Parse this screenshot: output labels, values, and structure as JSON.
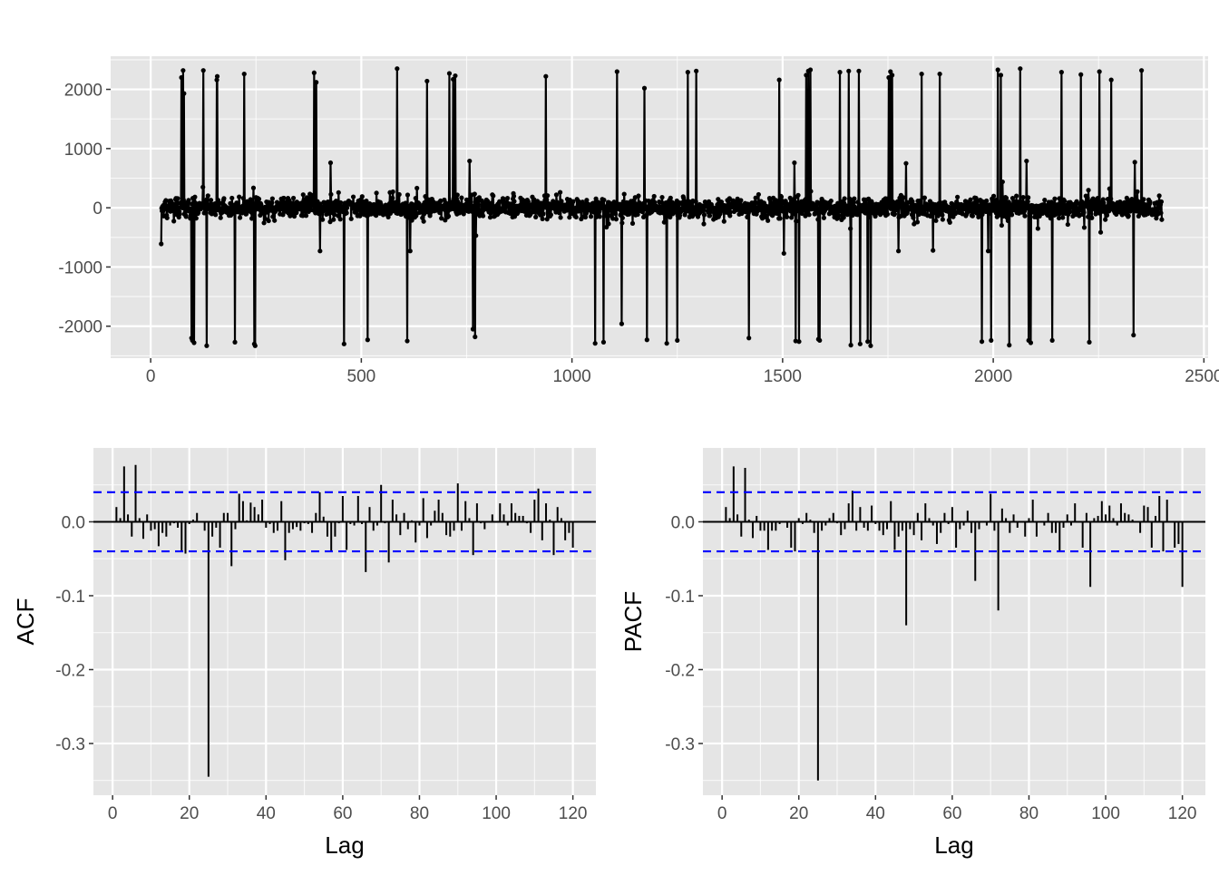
{
  "colors": {
    "panel_background": "#e5e5e5",
    "grid_major": "#ffffff",
    "series": "#000000",
    "confidence_band": "#0000ff",
    "tick_text": "#4d4d4d"
  },
  "chart_data": [
    {
      "type": "line",
      "title": "",
      "xlabel": "",
      "ylabel": "",
      "xlim": [
        -95,
        2510
      ],
      "ylim": [
        -2540,
        2560
      ],
      "x_ticks": [
        0,
        500,
        1000,
        1500,
        2000,
        2500
      ],
      "x_tick_labels": [
        "0",
        "500",
        "1000",
        "1500",
        "2000",
        "2500"
      ],
      "y_ticks": [
        -2000,
        -1000,
        0,
        1000,
        2000
      ],
      "y_tick_labels": [
        "-2000",
        "-1000",
        "0",
        "1000",
        "2000"
      ],
      "grid": true,
      "markers": true,
      "n_points": 2376,
      "x_start": 25,
      "noise_sd": 85,
      "spikes": [
        [
          25,
          -610
        ],
        [
          73,
          2200
        ],
        [
          77,
          2320
        ],
        [
          79,
          1930
        ],
        [
          97,
          -2200
        ],
        [
          99,
          -2240
        ],
        [
          103,
          -2280
        ],
        [
          125,
          2320
        ],
        [
          133,
          -2330
        ],
        [
          157,
          2160
        ],
        [
          158,
          2220
        ],
        [
          200,
          -2270
        ],
        [
          222,
          2260
        ],
        [
          246,
          -2300
        ],
        [
          248,
          -2330
        ],
        [
          388,
          2280
        ],
        [
          393,
          2120
        ],
        [
          402,
          -730
        ],
        [
          427,
          760
        ],
        [
          459,
          -2300
        ],
        [
          515,
          -2230
        ],
        [
          585,
          2350
        ],
        [
          609,
          -2250
        ],
        [
          616,
          -730
        ],
        [
          656,
          2140
        ],
        [
          709,
          2270
        ],
        [
          718,
          2170
        ],
        [
          723,
          2230
        ],
        [
          757,
          790
        ],
        [
          765,
          -2050
        ],
        [
          770,
          -2180
        ],
        [
          938,
          2220
        ],
        [
          1055,
          -2290
        ],
        [
          1075,
          -2270
        ],
        [
          1107,
          2300
        ],
        [
          1118,
          -1960
        ],
        [
          1172,
          2020
        ],
        [
          1178,
          -2230
        ],
        [
          1225,
          -2290
        ],
        [
          1250,
          -2240
        ],
        [
          1275,
          2290
        ],
        [
          1295,
          2310
        ],
        [
          1420,
          -2200
        ],
        [
          1492,
          2160
        ],
        [
          1503,
          -770
        ],
        [
          1528,
          760
        ],
        [
          1531,
          -2250
        ],
        [
          1539,
          -2260
        ],
        [
          1556,
          2240
        ],
        [
          1561,
          2310
        ],
        [
          1566,
          2330
        ],
        [
          1585,
          -2220
        ],
        [
          1588,
          -2240
        ],
        [
          1636,
          2290
        ],
        [
          1657,
          2310
        ],
        [
          1662,
          -2320
        ],
        [
          1681,
          2310
        ],
        [
          1684,
          -2300
        ],
        [
          1702,
          -2260
        ],
        [
          1709,
          -2330
        ],
        [
          1752,
          2200
        ],
        [
          1756,
          2300
        ],
        [
          1760,
          2240
        ],
        [
          1775,
          -730
        ],
        [
          1793,
          750
        ],
        [
          1830,
          2260
        ],
        [
          1857,
          -720
        ],
        [
          1873,
          2260
        ],
        [
          1973,
          -2260
        ],
        [
          1988,
          -730
        ],
        [
          1995,
          -2240
        ],
        [
          2011,
          2330
        ],
        [
          2018,
          2240
        ],
        [
          2038,
          -2320
        ],
        [
          2064,
          2350
        ],
        [
          2079,
          790
        ],
        [
          2084,
          -2240
        ],
        [
          2089,
          -2280
        ],
        [
          2140,
          -2240
        ],
        [
          2162,
          2290
        ],
        [
          2208,
          2250
        ],
        [
          2228,
          -2270
        ],
        [
          2252,
          2300
        ],
        [
          2280,
          2160
        ],
        [
          2333,
          -2150
        ],
        [
          2336,
          770
        ],
        [
          2352,
          2320
        ]
      ]
    },
    {
      "type": "bar",
      "title": "",
      "xlabel": "Lag",
      "ylabel": "ACF",
      "xlim": [
        -5,
        126
      ],
      "ylim": [
        -0.37,
        0.1
      ],
      "x_ticks": [
        0,
        20,
        40,
        60,
        80,
        100,
        120
      ],
      "x_tick_labels": [
        "0",
        "20",
        "40",
        "60",
        "80",
        "100",
        "120"
      ],
      "y_ticks": [
        -0.3,
        -0.2,
        -0.1,
        0.0
      ],
      "y_tick_labels": [
        "-0.3",
        "-0.2",
        "-0.1",
        "0.0"
      ],
      "confidence_limit": 0.04,
      "grid": true,
      "lags": [
        1,
        2,
        3,
        4,
        5,
        6,
        7,
        8,
        9,
        10,
        11,
        12,
        13,
        14,
        15,
        16,
        17,
        18,
        19,
        20,
        21,
        22,
        23,
        24,
        25,
        26,
        27,
        28,
        29,
        30,
        31,
        32,
        33,
        34,
        35,
        36,
        37,
        38,
        39,
        40,
        41,
        42,
        43,
        44,
        45,
        46,
        47,
        48,
        49,
        50,
        51,
        52,
        53,
        54,
        55,
        56,
        57,
        58,
        59,
        60,
        61,
        62,
        63,
        64,
        65,
        66,
        67,
        68,
        69,
        70,
        71,
        72,
        73,
        74,
        75,
        76,
        77,
        78,
        79,
        80,
        81,
        82,
        83,
        84,
        85,
        86,
        87,
        88,
        89,
        90,
        91,
        92,
        93,
        94,
        95,
        96,
        97,
        98,
        99,
        100,
        101,
        102,
        103,
        104,
        105,
        106,
        107,
        108,
        109,
        110,
        111,
        112,
        113,
        114,
        115,
        116,
        117,
        118,
        119,
        120
      ],
      "values": [
        0.02,
        0.005,
        0.075,
        0.01,
        -0.02,
        0.077,
        0.005,
        -0.023,
        0.01,
        -0.012,
        -0.01,
        -0.033,
        -0.015,
        -0.02,
        -0.005,
        -0.002,
        -0.008,
        -0.04,
        -0.043,
        -0.003,
        0.003,
        0.012,
        0.0,
        -0.012,
        -0.345,
        -0.02,
        -0.008,
        -0.035,
        0.012,
        0.012,
        -0.06,
        -0.01,
        0.038,
        0.028,
        0.002,
        0.026,
        0.02,
        0.01,
        0.03,
        -0.008,
        -0.003,
        -0.015,
        -0.012,
        0.028,
        -0.052,
        -0.015,
        -0.01,
        -0.007,
        -0.012,
        -0.002,
        -0.003,
        -0.015,
        0.012,
        0.04,
        0.007,
        -0.02,
        -0.04,
        -0.02,
        -0.002,
        0.035,
        -0.038,
        -0.003,
        -0.005,
        0.035,
        -0.003,
        -0.068,
        0.02,
        -0.012,
        -0.005,
        0.05,
        -0.002,
        -0.055,
        0.03,
        0.01,
        -0.018,
        0.012,
        -0.01,
        0.002,
        -0.028,
        -0.005,
        0.032,
        -0.022,
        -0.005,
        0.015,
        0.03,
        0.012,
        -0.018,
        -0.02,
        -0.012,
        0.052,
        -0.012,
        0.028,
        0.005,
        -0.045,
        0.025,
        -0.002,
        -0.01,
        0.0,
        0.01,
        0.0,
        0.025,
        0.01,
        -0.005,
        0.025,
        0.012,
        0.008,
        0.008,
        -0.002,
        -0.015,
        0.03,
        0.045,
        -0.025,
        0.025,
        0.003,
        -0.045,
        0.02,
        0.005,
        -0.025,
        -0.015,
        -0.035
      ]
    },
    {
      "type": "bar",
      "title": "",
      "xlabel": "Lag",
      "ylabel": "PACF",
      "xlim": [
        -5,
        126
      ],
      "ylim": [
        -0.37,
        0.1
      ],
      "x_ticks": [
        0,
        20,
        40,
        60,
        80,
        100,
        120
      ],
      "x_tick_labels": [
        "0",
        "20",
        "40",
        "60",
        "80",
        "100",
        "120"
      ],
      "y_ticks": [
        -0.3,
        -0.2,
        -0.1,
        0.0
      ],
      "y_tick_labels": [
        "-0.3",
        "-0.2",
        "-0.1",
        "0.0"
      ],
      "confidence_limit": 0.04,
      "grid": true,
      "lags": [
        1,
        2,
        3,
        4,
        5,
        6,
        7,
        8,
        9,
        10,
        11,
        12,
        13,
        14,
        15,
        16,
        17,
        18,
        19,
        20,
        21,
        22,
        23,
        24,
        25,
        26,
        27,
        28,
        29,
        30,
        31,
        32,
        33,
        34,
        35,
        36,
        37,
        38,
        39,
        40,
        41,
        42,
        43,
        44,
        45,
        46,
        47,
        48,
        49,
        50,
        51,
        52,
        53,
        54,
        55,
        56,
        57,
        58,
        59,
        60,
        61,
        62,
        63,
        64,
        65,
        66,
        67,
        68,
        69,
        70,
        71,
        72,
        73,
        74,
        75,
        76,
        77,
        78,
        79,
        80,
        81,
        82,
        83,
        84,
        85,
        86,
        87,
        88,
        89,
        90,
        91,
        92,
        93,
        94,
        95,
        96,
        97,
        98,
        99,
        100,
        101,
        102,
        103,
        104,
        105,
        106,
        107,
        108,
        109,
        110,
        111,
        112,
        113,
        114,
        115,
        116,
        117,
        118,
        119,
        120
      ],
      "values": [
        0.02,
        0.005,
        0.075,
        0.01,
        -0.02,
        0.073,
        0.003,
        -0.022,
        0.008,
        -0.012,
        -0.012,
        -0.038,
        -0.012,
        -0.012,
        -0.003,
        0.0,
        -0.008,
        -0.035,
        -0.04,
        0.005,
        -0.003,
        0.012,
        0.003,
        -0.015,
        -0.35,
        -0.012,
        -0.005,
        0.005,
        0.012,
        -0.002,
        -0.018,
        -0.01,
        0.025,
        0.042,
        -0.012,
        0.02,
        -0.008,
        -0.012,
        0.022,
        -0.003,
        -0.012,
        -0.018,
        -0.01,
        0.028,
        -0.038,
        -0.02,
        -0.012,
        -0.14,
        -0.01,
        -0.018,
        0.012,
        -0.025,
        0.025,
        0.005,
        -0.005,
        -0.03,
        -0.015,
        0.012,
        -0.003,
        0.02,
        -0.035,
        -0.01,
        -0.005,
        0.015,
        -0.015,
        -0.08,
        -0.01,
        0.0,
        -0.005,
        0.038,
        -0.012,
        -0.12,
        0.018,
        0.005,
        -0.015,
        0.01,
        -0.008,
        0.0,
        -0.02,
        0.005,
        0.03,
        -0.02,
        0.0,
        -0.005,
        0.012,
        -0.015,
        -0.015,
        -0.04,
        -0.008,
        0.01,
        -0.005,
        0.025,
        0.0,
        -0.035,
        0.012,
        -0.088,
        0.005,
        0.008,
        0.028,
        0.01,
        0.022,
        0.005,
        -0.005,
        0.025,
        0.012,
        0.01,
        0.003,
        0.0,
        -0.015,
        0.022,
        0.02,
        -0.035,
        0.008,
        0.035,
        -0.04,
        0.03,
        0.0,
        -0.035,
        -0.03,
        -0.088
      ]
    }
  ]
}
